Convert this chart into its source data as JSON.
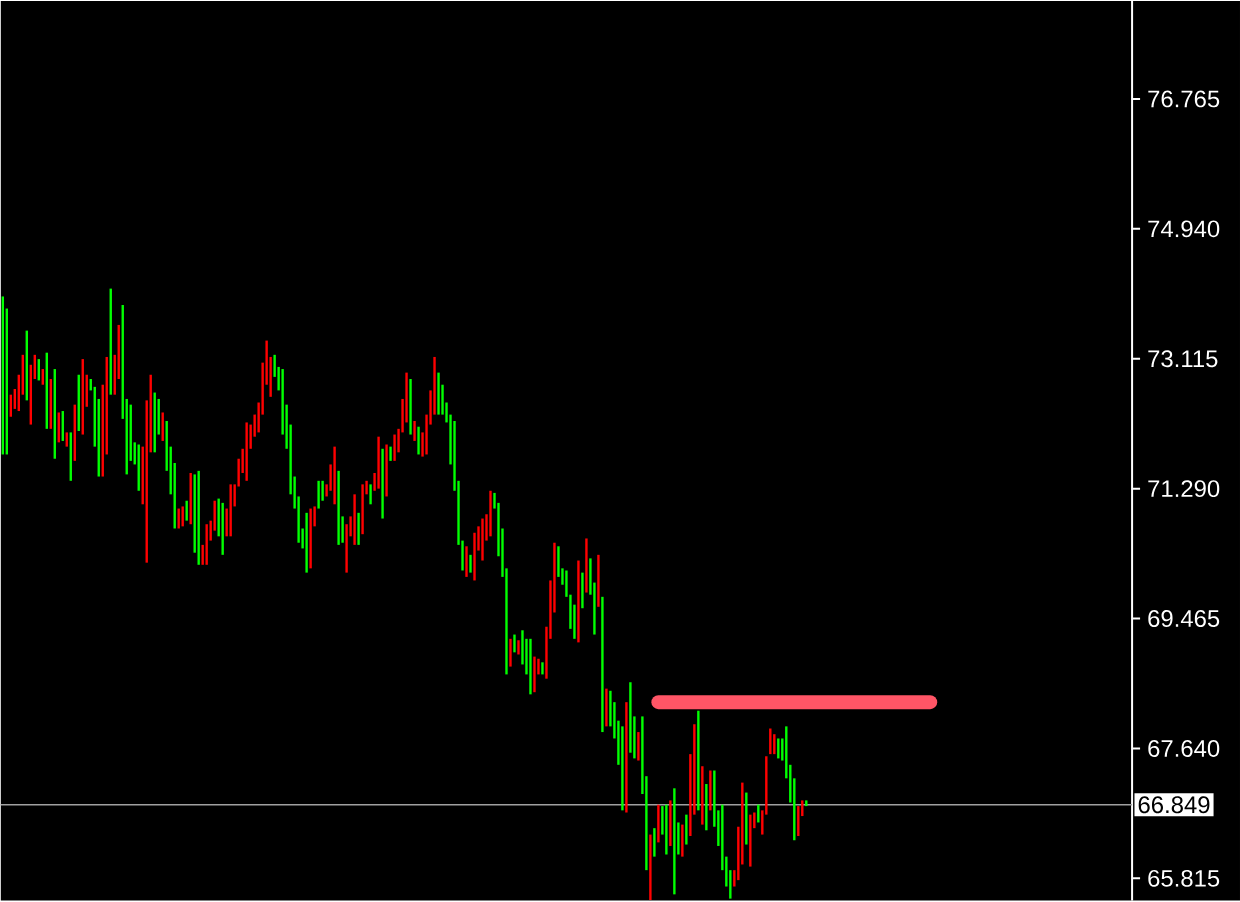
{
  "chart_data": {
    "type": "candlestick",
    "tick_labels": "y",
    "colors": [
      "#00ff00",
      "#00ff00",
      "#ff0000",
      "#ff0000",
      "#ff0000",
      "#ff0000",
      "#00ff00",
      "#ff0000",
      "#ff0000",
      "#00ff00",
      "#ff0000",
      "#00ff00",
      "#ff0000",
      "#00ff00",
      "#ff0000",
      "#00ff00",
      "#ff0000",
      "#00ff00",
      "#ff0000",
      "#00ff00",
      "#ff0000",
      "#ff0000",
      "#00ff00",
      "#00ff00",
      "#00ff00",
      "#ff0000",
      "#ff0000",
      "#00ff00",
      "#ff0000",
      "#ff0000",
      "#00ff00",
      "#00ff00",
      "#00ff00",
      "#00ff00",
      "#00ff00",
      "#ff0000",
      "#ff0000",
      "#ff0000",
      "#00ff00",
      "#00ff00",
      "#ff0000",
      "#00ff00",
      "#00ff00",
      "#00ff00",
      "#ff0000",
      "#ff0000",
      "#00ff00",
      "#ff0000",
      "#00ff00",
      "#00ff00",
      "#ff0000",
      "#ff0000",
      "#ff0000",
      "#ff0000",
      "#00ff00",
      "#00ff00",
      "#ff0000",
      "#ff0000",
      "#ff0000",
      "#ff0000",
      "#ff0000",
      "#ff0000",
      "#ff0000",
      "#ff0000",
      "#ff0000",
      "#ff0000",
      "#ff0000",
      "#ff0000",
      "#00ff00",
      "#00ff00",
      "#00ff00",
      "#00ff00",
      "#00ff00",
      "#00ff00",
      "#00ff00",
      "#00ff00",
      "#00ff00",
      "#ff0000",
      "#ff0000",
      "#00ff00",
      "#00ff00",
      "#ff0000",
      "#ff0000",
      "#ff0000",
      "#00ff00",
      "#00ff00",
      "#ff0000",
      "#ff0000",
      "#ff0000",
      "#00ff00",
      "#ff0000",
      "#ff0000",
      "#00ff00",
      "#ff0000",
      "#ff0000",
      "#00ff00",
      "#ff0000",
      "#00ff00",
      "#ff0000",
      "#ff0000",
      "#ff0000",
      "#ff0000",
      "#00ff00",
      "#ff0000",
      "#00ff00",
      "#ff0000",
      "#ff0000",
      "#ff0000",
      "#ff0000",
      "#00ff00",
      "#00ff00",
      "#00ff00",
      "#00ff00",
      "#00ff00",
      "#00ff00",
      "#00ff00",
      "#ff0000",
      "#00ff00",
      "#ff0000",
      "#ff0000",
      "#ff0000",
      "#ff0000",
      "#ff0000",
      "#00ff00",
      "#00ff00",
      "#00ff00",
      "#00ff00",
      "#ff0000",
      "#00ff00",
      "#ff0000",
      "#00ff00",
      "#00ff00",
      "#00ff00",
      "#ff0000",
      "#ff0000",
      "#00ff00",
      "#ff0000",
      "#ff0000",
      "#ff0000",
      "#00ff00",
      "#00ff00",
      "#00ff00",
      "#00ff00",
      "#00ff00",
      "#ff0000",
      "#00ff00",
      "#ff0000",
      "#00ff00",
      "#00ff00",
      "#ff0000",
      "#00ff00",
      "#ff0000",
      "#00ff00",
      "#00ff00",
      "#00ff00",
      "#00ff00",
      "#ff0000",
      "#00ff00",
      "#00ff00",
      "#ff0000",
      "#00ff00",
      "#00ff00",
      "#ff0000",
      "#00ff00",
      "#ff0000",
      "#00ff00",
      "#00ff00",
      "#ff0000",
      "#00ff00",
      "#00ff00",
      "#ff0000",
      "#00ff00",
      "#ff0000",
      "#ff0000",
      "#00ff00",
      "#ff0000",
      "#00ff00",
      "#ff0000",
      "#00ff00",
      "#00ff00",
      "#00ff00",
      "#00ff00",
      "#00ff00",
      "#ff0000",
      "#ff0000",
      "#ff0000",
      "#00ff00",
      "#ff0000",
      "#ff0000",
      "#00ff00",
      "#ff0000",
      "#ff0000",
      "#ff0000",
      "#ff0000",
      "#00ff00",
      "#00ff00",
      "#00ff00",
      "#00ff00",
      "#00ff00",
      "#ff0000",
      "#ff0000",
      "#00ff00",
      null,
      null,
      null,
      null,
      null,
      null,
      null,
      null,
      null,
      null,
      null,
      null,
      null,
      null,
      null,
      null,
      null,
      null,
      null,
      null,
      null,
      null,
      null,
      null,
      null,
      null,
      null,
      null,
      null,
      null,
      null,
      null,
      null,
      null,
      null,
      null,
      null,
      null,
      null,
      null,
      null,
      null,
      null,
      null,
      null,
      null,
      null,
      null,
      null,
      null,
      null,
      null,
      null,
      null,
      null,
      null,
      null,
      null,
      null,
      null,
      null,
      null,
      null,
      null,
      null,
      null,
      null,
      null,
      null,
      null,
      null,
      null,
      null,
      null,
      null,
      null,
      null,
      null,
      null,
      null,
      null
    ],
    "categories": [
      null,
      null,
      null,
      null,
      null,
      null,
      null,
      null,
      null,
      null,
      null,
      null,
      null,
      null,
      null,
      null,
      null,
      null,
      null,
      null,
      null,
      null,
      null,
      null,
      null,
      null,
      null,
      null,
      null,
      null,
      null,
      null,
      null,
      null,
      null,
      null,
      null,
      null,
      null,
      null,
      null,
      null,
      null,
      null,
      null,
      null,
      null,
      null,
      null,
      null,
      null,
      null,
      null,
      null,
      null,
      null,
      null,
      null,
      null,
      null,
      null,
      null,
      null,
      null,
      null,
      null,
      null,
      null,
      null,
      null,
      null,
      null,
      null,
      null,
      null,
      null,
      null,
      null,
      null,
      null,
      null,
      null,
      null,
      null,
      null,
      null,
      null,
      null,
      null,
      null,
      null,
      null,
      null,
      null,
      null,
      null,
      null,
      null,
      null,
      null,
      null,
      null,
      null,
      null,
      null,
      null,
      null,
      null,
      null,
      null,
      null,
      null,
      null,
      null,
      null,
      null,
      null,
      null,
      null,
      null,
      null,
      null,
      null,
      null,
      null,
      null,
      null,
      null,
      null,
      null,
      null,
      null,
      null,
      null,
      null,
      null,
      null,
      null,
      null,
      null,
      null,
      null,
      null,
      null,
      null,
      null,
      null,
      null,
      null,
      null,
      null,
      null,
      null,
      null,
      null,
      null,
      null,
      null,
      null,
      null,
      null,
      null,
      null,
      null,
      null,
      null,
      null,
      null,
      null,
      null,
      null,
      null,
      null,
      null,
      null,
      null,
      null,
      null,
      null,
      null,
      null,
      null,
      null,
      null,
      null,
      null,
      null,
      null,
      null,
      null,
      null,
      null,
      null,
      null,
      null,
      null,
      null,
      null,
      null,
      null,
      null,
      null,
      null,
      null,
      null,
      null,
      null,
      null,
      null,
      null,
      null,
      null,
      null,
      null,
      null,
      null,
      null,
      null,
      null,
      null,
      null,
      null,
      null,
      null,
      null,
      null,
      null,
      null,
      null,
      null,
      null,
      null,
      null,
      null,
      null,
      null,
      null,
      null,
      null,
      null,
      null,
      null,
      null,
      null,
      null,
      null,
      null,
      null,
      null,
      null,
      null,
      null,
      null,
      null,
      null,
      null,
      null,
      null,
      null,
      null,
      null,
      null,
      null,
      null,
      null,
      null,
      null,
      null,
      null,
      null,
      null,
      null,
      null,
      null,
      null,
      null,
      null,
      null,
      null,
      null,
      null,
      null,
      null
    ],
    "ohlc": [
      [
        71.77,
        73.99,
        71.77,
        73.99
      ],
      [
        71.77,
        73.82,
        71.77,
        73.82
      ],
      [
        72.61,
        72.61,
        72.3,
        72.3
      ],
      [
        72.69,
        72.69,
        72.41,
        72.41
      ],
      [
        72.89,
        72.89,
        72.38,
        72.38
      ],
      [
        73.17,
        73.17,
        72.61,
        72.61
      ],
      [
        72.53,
        73.51,
        72.53,
        73.51
      ],
      [
        73.03,
        73.03,
        72.19,
        72.19
      ],
      [
        73.17,
        73.17,
        72.83,
        72.83
      ],
      [
        72.81,
        73.11,
        72.81,
        73.11
      ],
      [
        72.97,
        72.97,
        72.75,
        72.75
      ],
      [
        72.13,
        73.2,
        72.13,
        73.2
      ],
      [
        72.83,
        72.83,
        72.13,
        72.13
      ],
      [
        71.71,
        72.97,
        71.71,
        72.97
      ],
      [
        72.36,
        72.36,
        71.94,
        71.94
      ],
      [
        71.96,
        72.38,
        71.96,
        72.38
      ],
      [
        72.08,
        72.08,
        71.88,
        71.88
      ],
      [
        71.4,
        72.08,
        71.4,
        72.08
      ],
      [
        72.47,
        72.47,
        71.68,
        71.68
      ],
      [
        72.1,
        72.89,
        72.1,
        72.89
      ],
      [
        73.11,
        73.11,
        72.05,
        72.05
      ],
      [
        72.89,
        72.89,
        72.44,
        72.44
      ],
      [
        72.67,
        72.83,
        72.67,
        72.83
      ],
      [
        71.88,
        72.72,
        71.88,
        72.72
      ],
      [
        71.46,
        72.55,
        71.46,
        72.55
      ],
      [
        72.75,
        72.75,
        71.46,
        71.46
      ],
      [
        73.14,
        73.14,
        71.77,
        71.77
      ],
      [
        72.61,
        74.1,
        72.61,
        74.1
      ],
      [
        73.17,
        73.17,
        72.61,
        72.61
      ],
      [
        73.59,
        73.59,
        72.83,
        72.83
      ],
      [
        72.27,
        73.87,
        72.27,
        73.87
      ],
      [
        71.49,
        72.55,
        71.49,
        72.55
      ],
      [
        71.68,
        72.47,
        71.68,
        72.47
      ],
      [
        71.63,
        71.94,
        71.63,
        71.94
      ],
      [
        71.26,
        71.91,
        71.26,
        71.91
      ],
      [
        71.88,
        71.88,
        71.07,
        71.07
      ],
      [
        72.53,
        72.53,
        70.25,
        70.25
      ],
      [
        72.89,
        72.89,
        71.8,
        71.8
      ],
      [
        71.8,
        72.64,
        71.8,
        72.64
      ],
      [
        72.05,
        72.55,
        72.05,
        72.55
      ],
      [
        72.36,
        72.36,
        71.96,
        71.96
      ],
      [
        71.54,
        72.24,
        71.54,
        72.24
      ],
      [
        71.21,
        71.88,
        71.21,
        71.88
      ],
      [
        70.73,
        71.65,
        70.73,
        71.65
      ],
      [
        71.01,
        71.01,
        70.73,
        70.73
      ],
      [
        71.04,
        71.04,
        70.76,
        70.76
      ],
      [
        70.84,
        71.12,
        70.84,
        71.12
      ],
      [
        71.51,
        71.51,
        70.79,
        70.79
      ],
      [
        70.39,
        71.49,
        70.39,
        71.49
      ],
      [
        70.22,
        71.54,
        70.22,
        71.54
      ],
      [
        70.5,
        70.5,
        70.22,
        70.22
      ],
      [
        70.79,
        70.79,
        70.22,
        70.22
      ],
      [
        70.84,
        70.84,
        70.56,
        70.56
      ],
      [
        71.12,
        71.12,
        70.7,
        70.7
      ],
      [
        70.62,
        71.15,
        70.62,
        71.15
      ],
      [
        70.36,
        71.09,
        70.36,
        71.09
      ],
      [
        71.01,
        71.01,
        70.62,
        70.62
      ],
      [
        71.35,
        71.35,
        70.62,
        70.62
      ],
      [
        71.35,
        71.35,
        71.04,
        71.04
      ],
      [
        71.71,
        71.71,
        71.32,
        71.32
      ],
      [
        71.85,
        71.85,
        71.51,
        71.51
      ],
      [
        72.22,
        72.22,
        71.4,
        71.4
      ],
      [
        72.19,
        72.19,
        71.85,
        71.85
      ],
      [
        72.33,
        72.33,
        72.02,
        72.02
      ],
      [
        72.5,
        72.5,
        72.08,
        72.08
      ],
      [
        73.06,
        73.06,
        72.33,
        72.33
      ],
      [
        73.37,
        73.37,
        72.75,
        72.75
      ],
      [
        73.14,
        73.14,
        72.58,
        72.58
      ],
      [
        72.86,
        73.17,
        72.86,
        73.17
      ],
      [
        72.67,
        73.0,
        72.67,
        73.0
      ],
      [
        72.05,
        72.97,
        72.05,
        72.97
      ],
      [
        71.85,
        72.47,
        71.85,
        72.47
      ],
      [
        71.21,
        72.19,
        71.21,
        72.19
      ],
      [
        71.01,
        71.46,
        71.01,
        71.46
      ],
      [
        70.53,
        71.18,
        70.53,
        71.18
      ],
      [
        70.45,
        70.73,
        70.45,
        70.73
      ],
      [
        70.11,
        70.95,
        70.11,
        70.95
      ],
      [
        71.01,
        71.01,
        70.17,
        70.17
      ],
      [
        71.04,
        71.04,
        70.76,
        70.76
      ],
      [
        71.01,
        71.4,
        71.01,
        71.4
      ],
      [
        71.12,
        71.4,
        71.12,
        71.4
      ],
      [
        71.35,
        71.35,
        71.18,
        71.18
      ],
      [
        71.63,
        71.63,
        71.26,
        71.26
      ],
      [
        71.88,
        71.88,
        71.07,
        71.07
      ],
      [
        70.5,
        71.54,
        70.5,
        71.54
      ],
      [
        70.53,
        70.9,
        70.53,
        70.9
      ],
      [
        70.79,
        70.79,
        70.11,
        70.11
      ],
      [
        70.9,
        70.9,
        70.62,
        70.62
      ],
      [
        71.21,
        71.21,
        70.5,
        70.5
      ],
      [
        70.5,
        70.95,
        70.5,
        70.95
      ],
      [
        71.35,
        71.35,
        70.65,
        70.65
      ],
      [
        71.4,
        71.4,
        71.21,
        71.21
      ],
      [
        71.07,
        71.35,
        71.07,
        71.35
      ],
      [
        71.51,
        71.51,
        71.26,
        71.26
      ],
      [
        72.02,
        72.02,
        71.29,
        71.29
      ],
      [
        70.87,
        71.85,
        70.87,
        71.85
      ],
      [
        71.91,
        71.91,
        71.18,
        71.18
      ],
      [
        71.68,
        71.88,
        71.68,
        71.88
      ],
      [
        72.05,
        72.05,
        71.68,
        71.68
      ],
      [
        72.13,
        72.13,
        71.8,
        71.8
      ],
      [
        72.55,
        72.55,
        72.08,
        72.08
      ],
      [
        72.92,
        72.92,
        72.22,
        72.22
      ],
      [
        72.05,
        72.83,
        72.05,
        72.83
      ],
      [
        72.24,
        72.24,
        71.96,
        71.96
      ],
      [
        71.77,
        72.16,
        71.77,
        72.16
      ],
      [
        72.08,
        72.08,
        71.74,
        71.74
      ],
      [
        72.33,
        72.33,
        71.77,
        71.77
      ],
      [
        72.67,
        72.67,
        72.19,
        72.19
      ],
      [
        73.14,
        73.14,
        72.33,
        72.33
      ],
      [
        72.33,
        72.92,
        72.33,
        72.92
      ],
      [
        72.33,
        72.75,
        72.33,
        72.75
      ],
      [
        72.22,
        72.5,
        72.22,
        72.5
      ],
      [
        71.63,
        72.33,
        71.63,
        72.33
      ],
      [
        71.26,
        72.24,
        71.26,
        72.24
      ],
      [
        70.5,
        71.4,
        70.5,
        71.4
      ],
      [
        70.14,
        70.56,
        70.14,
        70.56
      ],
      [
        70.48,
        70.48,
        70.05,
        70.05
      ],
      [
        70.11,
        70.36,
        70.11,
        70.36
      ],
      [
        70.67,
        70.67,
        70.0,
        70.0
      ],
      [
        70.76,
        70.76,
        70.42,
        70.42
      ],
      [
        70.87,
        70.87,
        70.28,
        70.28
      ],
      [
        70.93,
        70.93,
        70.56,
        70.56
      ],
      [
        71.26,
        71.26,
        70.62,
        70.62
      ],
      [
        71.01,
        71.23,
        71.01,
        71.23
      ],
      [
        70.34,
        71.09,
        70.34,
        71.09
      ],
      [
        70.05,
        70.73,
        70.05,
        70.73
      ],
      [
        68.68,
        70.17,
        68.68,
        70.17
      ],
      [
        69.18,
        69.18,
        68.79,
        68.79
      ],
      [
        68.99,
        69.24,
        68.99,
        69.24
      ],
      [
        69.16,
        69.16,
        68.96,
        68.96
      ],
      [
        68.82,
        69.3,
        68.82,
        69.3
      ],
      [
        68.68,
        69.18,
        68.68,
        69.18
      ],
      [
        68.4,
        69.18,
        68.4,
        69.18
      ],
      [
        68.93,
        68.93,
        68.43,
        68.43
      ],
      [
        68.9,
        68.9,
        68.68,
        68.68
      ],
      [
        68.68,
        68.85,
        68.68,
        68.85
      ],
      [
        69.35,
        69.35,
        68.62,
        68.62
      ],
      [
        70.0,
        70.0,
        69.18,
        69.18
      ],
      [
        70.53,
        70.53,
        69.55,
        69.55
      ],
      [
        70.05,
        70.48,
        70.05,
        70.48
      ],
      [
        69.94,
        70.17,
        69.94,
        70.17
      ],
      [
        69.77,
        70.14,
        69.77,
        70.14
      ],
      [
        69.32,
        69.8,
        69.32,
        69.8
      ],
      [
        69.18,
        69.66,
        69.18,
        69.66
      ],
      [
        70.28,
        70.28,
        69.13,
        69.13
      ],
      [
        69.61,
        70.11,
        69.61,
        70.11
      ],
      [
        70.59,
        70.59,
        69.83,
        69.83
      ],
      [
        69.8,
        70.31,
        69.8,
        70.31
      ],
      [
        69.24,
        69.97,
        69.24,
        69.97
      ],
      [
        70.36,
        70.36,
        69.63,
        69.63
      ],
      [
        67.87,
        69.77,
        67.87,
        69.77
      ],
      [
        68.48,
        68.48,
        67.95,
        67.95
      ],
      [
        67.95,
        68.45,
        67.95,
        68.45
      ],
      [
        67.78,
        68.29,
        67.78,
        68.29
      ],
      [
        67.41,
        68.03,
        67.41,
        68.03
      ],
      [
        66.77,
        67.95,
        66.77,
        67.95
      ],
      [
        68.29,
        68.29,
        66.74,
        66.74
      ],
      [
        67.58,
        68.57,
        67.58,
        68.57
      ],
      [
        67.5,
        68.09,
        67.5,
        68.09
      ],
      [
        67.87,
        67.87,
        67.47,
        67.47
      ],
      [
        67.0,
        68.09,
        67.0,
        68.09
      ],
      [
        65.93,
        67.25,
        65.93,
        67.25
      ],
      [
        66.43,
        66.43,
        65.51,
        65.51
      ],
      [
        66.12,
        66.52,
        66.12,
        66.52
      ],
      [
        66.85,
        66.85,
        66.32,
        66.32
      ],
      [
        66.43,
        66.83,
        66.43,
        66.83
      ],
      [
        66.15,
        66.85,
        66.15,
        66.85
      ],
      [
        66.91,
        66.91,
        66.27,
        66.27
      ],
      [
        65.59,
        67.08,
        65.59,
        67.08
      ],
      [
        66.15,
        66.6,
        66.15,
        66.6
      ],
      [
        66.57,
        66.57,
        66.12,
        66.12
      ],
      [
        66.29,
        66.71,
        66.29,
        66.71
      ],
      [
        67.56,
        67.56,
        66.41,
        66.41
      ],
      [
        67.98,
        67.98,
        66.71,
        66.71
      ],
      [
        66.77,
        68.17,
        66.77,
        68.17
      ],
      [
        67.39,
        67.39,
        66.57,
        66.57
      ],
      [
        66.49,
        67.14,
        66.49,
        67.14
      ],
      [
        67.33,
        67.33,
        66.77,
        66.77
      ],
      [
        66.54,
        67.33,
        66.54,
        67.33
      ],
      [
        66.27,
        66.77,
        66.27,
        66.77
      ],
      [
        65.93,
        66.85,
        65.93,
        66.85
      ],
      [
        65.7,
        66.12,
        65.7,
        66.12
      ],
      [
        65.53,
        65.93,
        65.53,
        65.93
      ],
      [
        65.93,
        65.93,
        65.7,
        65.7
      ],
      [
        66.54,
        66.54,
        65.79,
        65.79
      ],
      [
        67.16,
        67.16,
        66.01,
        66.01
      ],
      [
        66.29,
        67.02,
        66.29,
        67.02
      ],
      [
        66.71,
        66.71,
        65.98,
        65.98
      ],
      [
        66.74,
        66.74,
        66.52,
        66.52
      ],
      [
        66.6,
        66.85,
        66.6,
        66.85
      ],
      [
        66.77,
        66.77,
        66.43,
        66.43
      ],
      [
        67.53,
        67.53,
        66.71,
        66.71
      ],
      [
        67.92,
        67.92,
        67.56,
        67.56
      ],
      [
        67.84,
        67.84,
        67.56,
        67.56
      ],
      [
        67.5,
        67.78,
        67.5,
        67.78
      ],
      [
        67.47,
        67.78,
        67.47,
        67.78
      ],
      [
        67.22,
        67.95,
        67.22,
        67.95
      ],
      [
        66.88,
        67.41,
        66.88,
        67.41
      ],
      [
        66.35,
        67.22,
        66.35,
        67.22
      ],
      [
        66.83,
        66.83,
        66.41,
        66.41
      ],
      [
        66.91,
        66.91,
        66.69,
        66.69
      ],
      [
        66.83,
        66.91,
        66.83,
        66.91
      ],
      null,
      null,
      null,
      null,
      null,
      null,
      null,
      null,
      null,
      null,
      null,
      null,
      null,
      null,
      null,
      null,
      null,
      null,
      null,
      null,
      null,
      null,
      null,
      null,
      null,
      null,
      null,
      null,
      null,
      null,
      null,
      null,
      null,
      null,
      null,
      null,
      null,
      null,
      null,
      null,
      null,
      null,
      null,
      null,
      null,
      null,
      null,
      null,
      null,
      null,
      null,
      null,
      null,
      null,
      null,
      null,
      null,
      null,
      null,
      null,
      null,
      null,
      null,
      null,
      null,
      null,
      null,
      null,
      null,
      null,
      null,
      null,
      null,
      null,
      null,
      null,
      null,
      null,
      null,
      null,
      null
    ],
    "series": [
      {
        "type": "line",
        "color": "#ff5566",
        "values": [
          null,
          null,
          null,
          null,
          null,
          null,
          null,
          null,
          null,
          null,
          null,
          null,
          null,
          null,
          null,
          null,
          null,
          null,
          null,
          null,
          null,
          null,
          null,
          null,
          null,
          null,
          null,
          null,
          null,
          null,
          null,
          null,
          null,
          null,
          null,
          null,
          null,
          null,
          null,
          null,
          null,
          null,
          null,
          null,
          null,
          null,
          null,
          null,
          null,
          null,
          null,
          null,
          null,
          null,
          null,
          null,
          null,
          null,
          null,
          null,
          null,
          null,
          null,
          null,
          null,
          null,
          null,
          null,
          null,
          null,
          null,
          null,
          null,
          null,
          null,
          null,
          null,
          null,
          null,
          null,
          null,
          null,
          null,
          null,
          null,
          null,
          null,
          null,
          null,
          null,
          null,
          null,
          null,
          null,
          null,
          null,
          null,
          null,
          null,
          null,
          null,
          null,
          null,
          null,
          null,
          null,
          null,
          null,
          null,
          null,
          null,
          null,
          null,
          null,
          null,
          null,
          null,
          null,
          null,
          null,
          null,
          null,
          null,
          null,
          null,
          null,
          null,
          null,
          null,
          null,
          null,
          null,
          null,
          null,
          null,
          null,
          null,
          null,
          null,
          null,
          null,
          null,
          null,
          null,
          null,
          null,
          null,
          null,
          null,
          null,
          null,
          null,
          null,
          null,
          null,
          null,
          null,
          null,
          null,
          null,
          null,
          null,
          null,
          null,
          68.29,
          68.29,
          68.29,
          68.29,
          68.29,
          68.29,
          68.29,
          68.29,
          68.29,
          68.29,
          68.29,
          68.29,
          68.29,
          68.29,
          68.29,
          68.29,
          68.29,
          68.29,
          68.29,
          68.29,
          68.29,
          68.29,
          68.29,
          68.29,
          68.29,
          68.29,
          68.29,
          68.29,
          68.29,
          68.29,
          68.29,
          68.29,
          68.29,
          68.29,
          68.29,
          68.29,
          68.29,
          68.29,
          68.29,
          68.29,
          68.29,
          68.29,
          68.29,
          68.29,
          68.29,
          68.29,
          68.29,
          68.29,
          68.29,
          68.29,
          68.29,
          68.29,
          68.29,
          68.29,
          68.29,
          68.29,
          68.29,
          68.29,
          68.29,
          68.29,
          68.29,
          68.29,
          68.29,
          68.29,
          68.29,
          68.29,
          68.29,
          68.29,
          68.29,
          null,
          null,
          null,
          null,
          null,
          null,
          null,
          null,
          null,
          null,
          null,
          null,
          null,
          null,
          null,
          null,
          null,
          null,
          null,
          null,
          null,
          null,
          null,
          null,
          null,
          null,
          null,
          null,
          null,
          null,
          null,
          null,
          null,
          null,
          null,
          null,
          null,
          null,
          null,
          null,
          null,
          null,
          null,
          null,
          null,
          null,
          null,
          null,
          null,
          null
        ]
      }
    ],
    "ylim": [
      65.505,
      78.141
    ],
    "yticks": [
      {
        "value": 65.815,
        "label": "65.815"
      },
      {
        "value": 67.64,
        "label": "67.640"
      },
      {
        "value": 69.465,
        "label": "69.465"
      },
      {
        "value": 71.29,
        "label": "71.290"
      },
      {
        "value": 73.115,
        "label": "73.115"
      },
      {
        "value": 74.94,
        "label": "74.940"
      },
      {
        "value": 76.765,
        "label": "76.765"
      }
    ],
    "ref_lines": [
      {
        "axis": "y",
        "value": 66.849,
        "label": "66.849",
        "color": "#a0a0a0"
      }
    ]
  }
}
